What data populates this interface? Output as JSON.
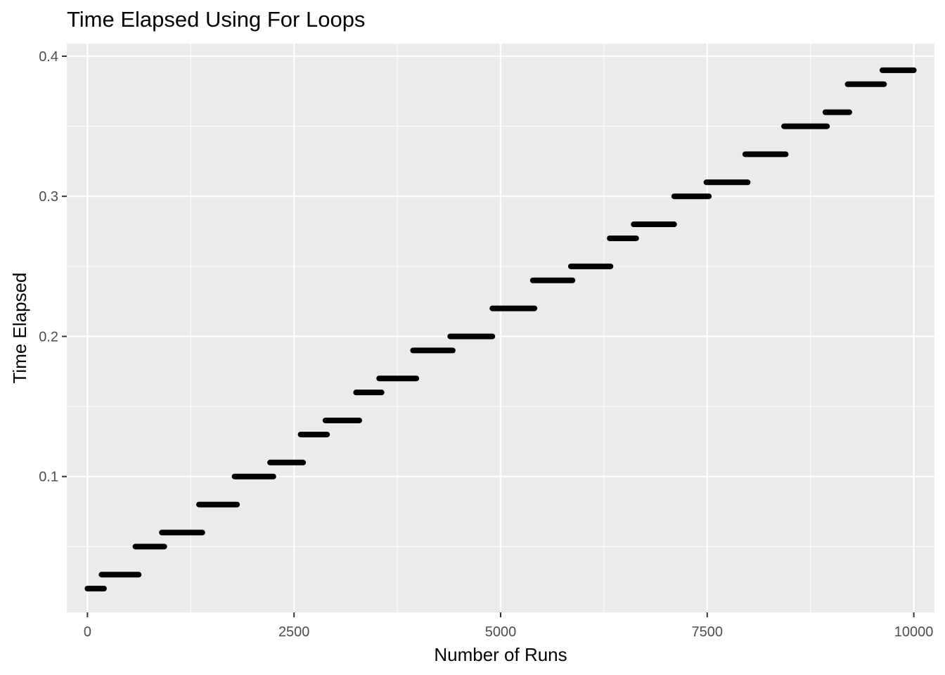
{
  "chart_data": {
    "type": "scatter",
    "title": "Time Elapsed Using For Loops",
    "xlabel": "Number of Runs",
    "ylabel": "Time Elapsed",
    "xlim": [
      -250,
      10250
    ],
    "ylim": [
      0.003,
      0.409
    ],
    "x_ticks": [
      0,
      2500,
      5000,
      7500,
      10000
    ],
    "x_tick_labels": [
      "0",
      "2500",
      "5000",
      "7500",
      "10000"
    ],
    "y_ticks": [
      0.1,
      0.2,
      0.3,
      0.4
    ],
    "y_tick_labels": [
      "0.1",
      "0.2",
      "0.3",
      "0.4"
    ],
    "grid": true,
    "legend": "none",
    "background_color": "#ebebeb",
    "grid_color": "#ffffff",
    "point_color": "#000000",
    "series": [
      {
        "description": "runs of equal elapsed time shown as horizontal bands of dense points",
        "segments": [
          {
            "x_start": 0,
            "x_end": 200,
            "y": 0.02
          },
          {
            "x_start": 170,
            "x_end": 620,
            "y": 0.03
          },
          {
            "x_start": 580,
            "x_end": 930,
            "y": 0.05
          },
          {
            "x_start": 900,
            "x_end": 1390,
            "y": 0.06
          },
          {
            "x_start": 1350,
            "x_end": 1810,
            "y": 0.08
          },
          {
            "x_start": 1780,
            "x_end": 2250,
            "y": 0.1
          },
          {
            "x_start": 2210,
            "x_end": 2610,
            "y": 0.11
          },
          {
            "x_start": 2580,
            "x_end": 2900,
            "y": 0.13
          },
          {
            "x_start": 2880,
            "x_end": 3290,
            "y": 0.14
          },
          {
            "x_start": 3250,
            "x_end": 3560,
            "y": 0.16
          },
          {
            "x_start": 3530,
            "x_end": 3980,
            "y": 0.17
          },
          {
            "x_start": 3940,
            "x_end": 4420,
            "y": 0.19
          },
          {
            "x_start": 4390,
            "x_end": 4900,
            "y": 0.2
          },
          {
            "x_start": 4900,
            "x_end": 5410,
            "y": 0.22
          },
          {
            "x_start": 5390,
            "x_end": 5870,
            "y": 0.24
          },
          {
            "x_start": 5850,
            "x_end": 6330,
            "y": 0.25
          },
          {
            "x_start": 6320,
            "x_end": 6640,
            "y": 0.27
          },
          {
            "x_start": 6610,
            "x_end": 7100,
            "y": 0.28
          },
          {
            "x_start": 7100,
            "x_end": 7520,
            "y": 0.3
          },
          {
            "x_start": 7490,
            "x_end": 7990,
            "y": 0.31
          },
          {
            "x_start": 7960,
            "x_end": 8450,
            "y": 0.33
          },
          {
            "x_start": 8430,
            "x_end": 8950,
            "y": 0.35
          },
          {
            "x_start": 8930,
            "x_end": 9220,
            "y": 0.36
          },
          {
            "x_start": 9200,
            "x_end": 9640,
            "y": 0.38
          },
          {
            "x_start": 9620,
            "x_end": 10000,
            "y": 0.39
          }
        ]
      }
    ]
  }
}
